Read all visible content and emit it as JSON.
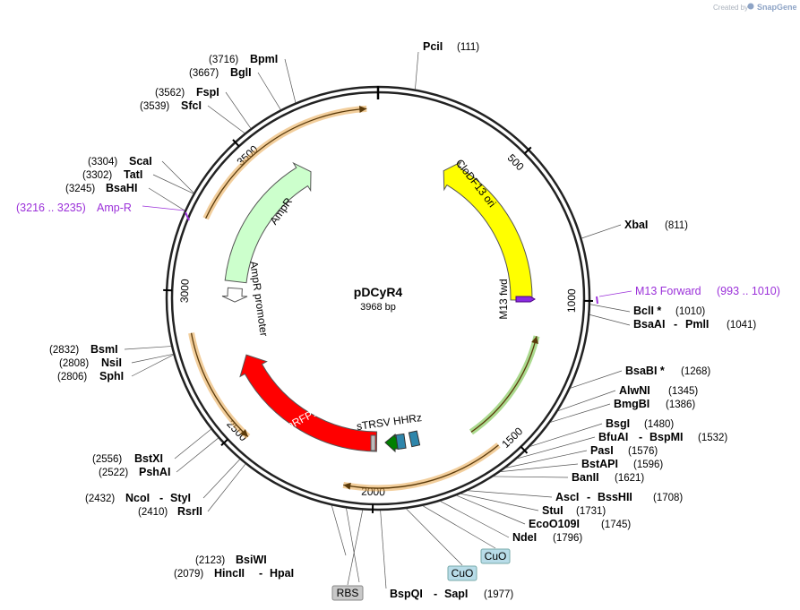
{
  "credit": {
    "created_by": "Created by",
    "brand": "SnapGene"
  },
  "plasmid": {
    "name": "pDCyR4",
    "length_bp": 3968,
    "length_label": "3968 bp"
  },
  "ticks": [
    {
      "pos": 500,
      "label": "500"
    },
    {
      "pos": 1000,
      "label": "1000"
    },
    {
      "pos": 1500,
      "label": "1500"
    },
    {
      "pos": 2000,
      "label": "2000"
    },
    {
      "pos": 2500,
      "label": "2500"
    },
    {
      "pos": 3000,
      "label": "3000"
    },
    {
      "pos": 3500,
      "label": "3500"
    }
  ],
  "features": [
    {
      "name": "CloDF13 ori",
      "color": "#ffff00",
      "start": 300,
      "end": 1000
    },
    {
      "name": "AmpR",
      "color": "#ccffcc",
      "start": 3660,
      "end": 3050
    },
    {
      "name": "AmpR promoter",
      "color": "#ffffff",
      "start": 3050,
      "end": 2990
    },
    {
      "name": "mRFP1",
      "color": "#ff0000",
      "start": 2030,
      "end": 2720
    },
    {
      "name": "sTRSV HHRz",
      "color": "#2e86ab"
    },
    {
      "name": "M13 fwd",
      "color": "#8a2be2"
    }
  ],
  "orf_color": "#e8a54a",
  "green_orf_color": "#66bb33",
  "primers": [
    {
      "name": "Amp-R",
      "range": "(3216 .. 3235)"
    },
    {
      "name": "M13 Forward",
      "range": "(993 .. 1010)"
    }
  ],
  "enzymes": [
    {
      "name": "PciI",
      "pos": "(111)"
    },
    {
      "name": "XbaI",
      "pos": "(811)"
    },
    {
      "name": "BclI *",
      "pos": "(1010)"
    },
    {
      "name": "BsaAI",
      "name2": "PmlI",
      "pos": "(1041)"
    },
    {
      "name": "BsaBI *",
      "pos": "(1268)"
    },
    {
      "name": "AlwNI",
      "pos": "(1345)"
    },
    {
      "name": "BmgBI",
      "pos": "(1386)"
    },
    {
      "name": "BsgI",
      "pos": "(1480)"
    },
    {
      "name": "BfuAI",
      "name2": "BspMI",
      "pos": "(1532)"
    },
    {
      "name": "PasI",
      "pos": "(1576)"
    },
    {
      "name": "BstAPI",
      "pos": "(1596)"
    },
    {
      "name": "BanII",
      "pos": "(1621)"
    },
    {
      "name": "AscI",
      "name2": "BssHII",
      "pos": "(1708)"
    },
    {
      "name": "StuI",
      "pos": "(1731)"
    },
    {
      "name": "EcoO109I",
      "pos": "(1745)"
    },
    {
      "name": "NdeI",
      "pos": "(1796)"
    },
    {
      "name": "BspQI",
      "name2": "SapI",
      "pos": "(1977)"
    },
    {
      "name": "HincII",
      "name2": "HpaI",
      "pos": "(2079)"
    },
    {
      "name": "BsiWI",
      "pos": "(2123)"
    },
    {
      "name": "RsrII",
      "pos": "(2410)"
    },
    {
      "name": "NcoI",
      "name2": "StyI",
      "pos": "(2432)"
    },
    {
      "name": "PshAI",
      "pos": "(2522)"
    },
    {
      "name": "BstXI",
      "pos": "(2556)"
    },
    {
      "name": "SphI",
      "pos": "(2806)"
    },
    {
      "name": "NsiI",
      "pos": "(2808)"
    },
    {
      "name": "BsmI",
      "pos": "(2832)"
    },
    {
      "name": "BsaHI",
      "pos": "(3245)"
    },
    {
      "name": "TatI",
      "pos": "(3302)"
    },
    {
      "name": "ScaI",
      "pos": "(3304)"
    },
    {
      "name": "SfcI",
      "pos": "(3539)"
    },
    {
      "name": "FspI",
      "pos": "(3562)"
    },
    {
      "name": "BglI",
      "pos": "(3667)"
    },
    {
      "name": "BpmI",
      "pos": "(3716)"
    }
  ],
  "boxed_labels": [
    {
      "name": "CuO",
      "color": "#b8dce8"
    },
    {
      "name": "CuO",
      "color": "#b8dce8"
    },
    {
      "name": "RBS",
      "color": "#c8c8c8"
    }
  ]
}
